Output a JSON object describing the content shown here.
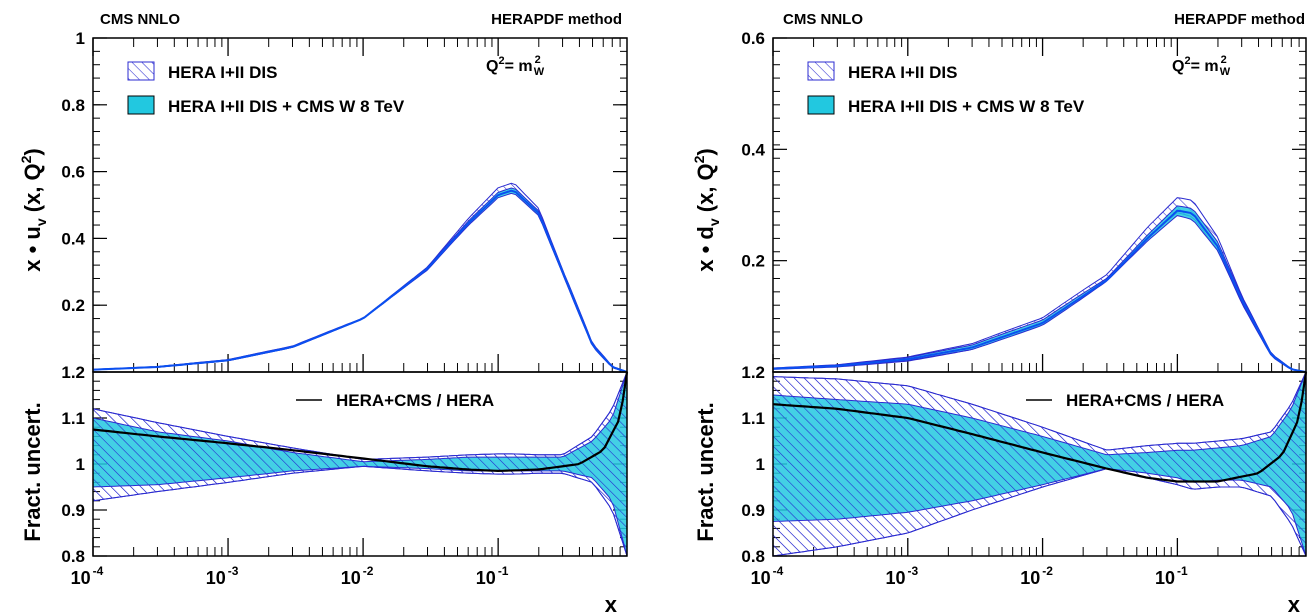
{
  "colors": {
    "hatch": "#2b2bd0",
    "fill": "#22c8e0",
    "central": "#0a50f0",
    "ratio_line": "#000000"
  },
  "chart_data": [
    {
      "id": "uv",
      "type": "area",
      "corner_left": "CMS NNLO",
      "corner_right": "HERAPDF method",
      "scale_label_main": "Q",
      "scale_label_sup": "2",
      "scale_label_rest": "= m",
      "scale_label_w_sup": "2",
      "scale_label_w_sub": "W",
      "ylabel": {
        "pre": "x • u",
        "sub": "v",
        "mid": " (x, Q",
        "sup": "2",
        "post": ")"
      },
      "ratio_ylabel": "Fract. uncert.",
      "xlabel": "x",
      "xscale": "log",
      "xlim": [
        0.0001,
        0.9
      ],
      "ylim": [
        0,
        1
      ],
      "yticks": [
        "0.2",
        "0.4",
        "0.6",
        "0.8",
        "1"
      ],
      "ratio_ylim": [
        0.8,
        1.2
      ],
      "ratio_yticks": [
        "0.8",
        "0.9",
        "1",
        "1.1",
        "1.2"
      ],
      "xticks": [
        {
          "base": "10",
          "exp": "-4"
        },
        {
          "base": "10",
          "exp": "-3"
        },
        {
          "base": "10",
          "exp": "-2"
        },
        {
          "base": "10",
          "exp": "-1"
        }
      ],
      "legend": [
        "HERA I+II DIS",
        "HERA I+II DIS + CMS W 8 TeV"
      ],
      "ratio_legend": "HERA+CMS / HERA",
      "series": [
        {
          "name": "HERA I+II DIS",
          "x": [
            0.0001,
            0.0003,
            0.001,
            0.003,
            0.01,
            0.03,
            0.06,
            0.1,
            0.13,
            0.2,
            0.3,
            0.5,
            0.7,
            0.9
          ],
          "y": [
            0.007,
            0.015,
            0.035,
            0.075,
            0.16,
            0.31,
            0.45,
            0.54,
            0.555,
            0.48,
            0.3,
            0.08,
            0.015,
            0.0
          ],
          "ratio_low": [
            0.92,
            0.94,
            0.96,
            0.98,
            0.995,
            0.985,
            0.98,
            0.978,
            0.978,
            0.98,
            0.98,
            0.96,
            0.9,
            0.8
          ],
          "ratio_high": [
            1.12,
            1.09,
            1.06,
            1.035,
            1.01,
            1.015,
            1.02,
            1.022,
            1.022,
            1.02,
            1.02,
            1.06,
            1.12,
            1.2
          ]
        },
        {
          "name": "HERA I+II DIS + CMS W 8 TeV",
          "x": [
            0.0001,
            0.0003,
            0.001,
            0.003,
            0.01,
            0.03,
            0.06,
            0.1,
            0.13,
            0.2,
            0.3,
            0.5,
            0.7,
            0.9
          ],
          "y": [
            0.007,
            0.015,
            0.035,
            0.075,
            0.16,
            0.31,
            0.445,
            0.53,
            0.545,
            0.475,
            0.3,
            0.08,
            0.015,
            0.0
          ],
          "ratio_low": [
            0.95,
            0.955,
            0.97,
            0.985,
            0.995,
            0.99,
            0.985,
            0.985,
            0.985,
            0.985,
            0.985,
            0.97,
            0.92,
            0.8
          ],
          "ratio_high": [
            1.1,
            1.07,
            1.05,
            1.025,
            1.005,
            1.01,
            1.015,
            1.015,
            1.015,
            1.015,
            1.015,
            1.05,
            1.1,
            1.2
          ]
        }
      ],
      "ratio_line": {
        "x": [
          0.0001,
          0.0003,
          0.001,
          0.003,
          0.01,
          0.03,
          0.06,
          0.1,
          0.2,
          0.4,
          0.6,
          0.8,
          0.9
        ],
        "y": [
          1.075,
          1.06,
          1.045,
          1.03,
          1.012,
          0.995,
          0.988,
          0.985,
          0.988,
          1.0,
          1.03,
          1.1,
          1.2
        ]
      }
    },
    {
      "id": "dv",
      "type": "area",
      "corner_left": "CMS NNLO",
      "corner_right": "HERAPDF method",
      "scale_label_main": "Q",
      "scale_label_sup": "2",
      "scale_label_rest": "= m",
      "scale_label_w_sup": "2",
      "scale_label_w_sub": "W",
      "ylabel": {
        "pre": "x • d",
        "sub": "v",
        "mid": " (x, Q",
        "sup": "2",
        "post": ")"
      },
      "ratio_ylabel": "Fract. uncert.",
      "xlabel": "x",
      "xscale": "log",
      "xlim": [
        0.0001,
        0.9
      ],
      "ylim": [
        0,
        0.6
      ],
      "yticks": [
        "0.2",
        "0.4",
        "0.6"
      ],
      "ratio_ylim": [
        0.8,
        1.2
      ],
      "ratio_yticks": [
        "0.8",
        "0.9",
        "1",
        "1.1",
        "1.2"
      ],
      "xticks": [
        {
          "base": "10",
          "exp": "-4"
        },
        {
          "base": "10",
          "exp": "-3"
        },
        {
          "base": "10",
          "exp": "-2"
        },
        {
          "base": "10",
          "exp": "-1"
        }
      ],
      "legend": [
        "HERA I+II DIS",
        "HERA I+II DIS + CMS W 8 TeV"
      ],
      "ratio_legend": "HERA+CMS / HERA",
      "series": [
        {
          "name": "HERA I+II DIS",
          "x": [
            0.0001,
            0.0003,
            0.001,
            0.003,
            0.01,
            0.03,
            0.06,
            0.1,
            0.13,
            0.2,
            0.3,
            0.5,
            0.7,
            0.9
          ],
          "y": [
            0.006,
            0.011,
            0.023,
            0.045,
            0.09,
            0.17,
            0.25,
            0.3,
            0.295,
            0.23,
            0.13,
            0.03,
            0.005,
            0.0
          ],
          "ratio_low": [
            0.8,
            0.82,
            0.85,
            0.9,
            0.95,
            0.99,
            0.97,
            0.955,
            0.945,
            0.95,
            0.95,
            0.93,
            0.87,
            0.8
          ],
          "ratio_high": [
            1.19,
            1.185,
            1.17,
            1.13,
            1.08,
            1.03,
            1.04,
            1.045,
            1.045,
            1.05,
            1.055,
            1.07,
            1.13,
            1.2
          ]
        },
        {
          "name": "HERA I+II DIS + CMS W 8 TeV",
          "x": [
            0.0001,
            0.0003,
            0.001,
            0.003,
            0.01,
            0.03,
            0.06,
            0.1,
            0.13,
            0.2,
            0.3,
            0.5,
            0.7,
            0.9
          ],
          "y": [
            0.006,
            0.011,
            0.023,
            0.044,
            0.088,
            0.165,
            0.24,
            0.29,
            0.285,
            0.225,
            0.13,
            0.03,
            0.005,
            0.0
          ],
          "ratio_low": [
            0.875,
            0.88,
            0.895,
            0.92,
            0.955,
            0.99,
            0.98,
            0.97,
            0.96,
            0.965,
            0.965,
            0.95,
            0.9,
            0.8
          ],
          "ratio_high": [
            1.15,
            1.14,
            1.13,
            1.1,
            1.06,
            1.02,
            1.025,
            1.03,
            1.03,
            1.035,
            1.04,
            1.06,
            1.12,
            1.2
          ]
        }
      ],
      "ratio_line": {
        "x": [
          0.0001,
          0.0003,
          0.001,
          0.003,
          0.01,
          0.03,
          0.06,
          0.1,
          0.2,
          0.4,
          0.6,
          0.8,
          0.9
        ],
        "y": [
          1.13,
          1.12,
          1.1,
          1.065,
          1.025,
          0.99,
          0.97,
          0.962,
          0.962,
          0.98,
          1.02,
          1.1,
          1.2
        ]
      }
    }
  ]
}
